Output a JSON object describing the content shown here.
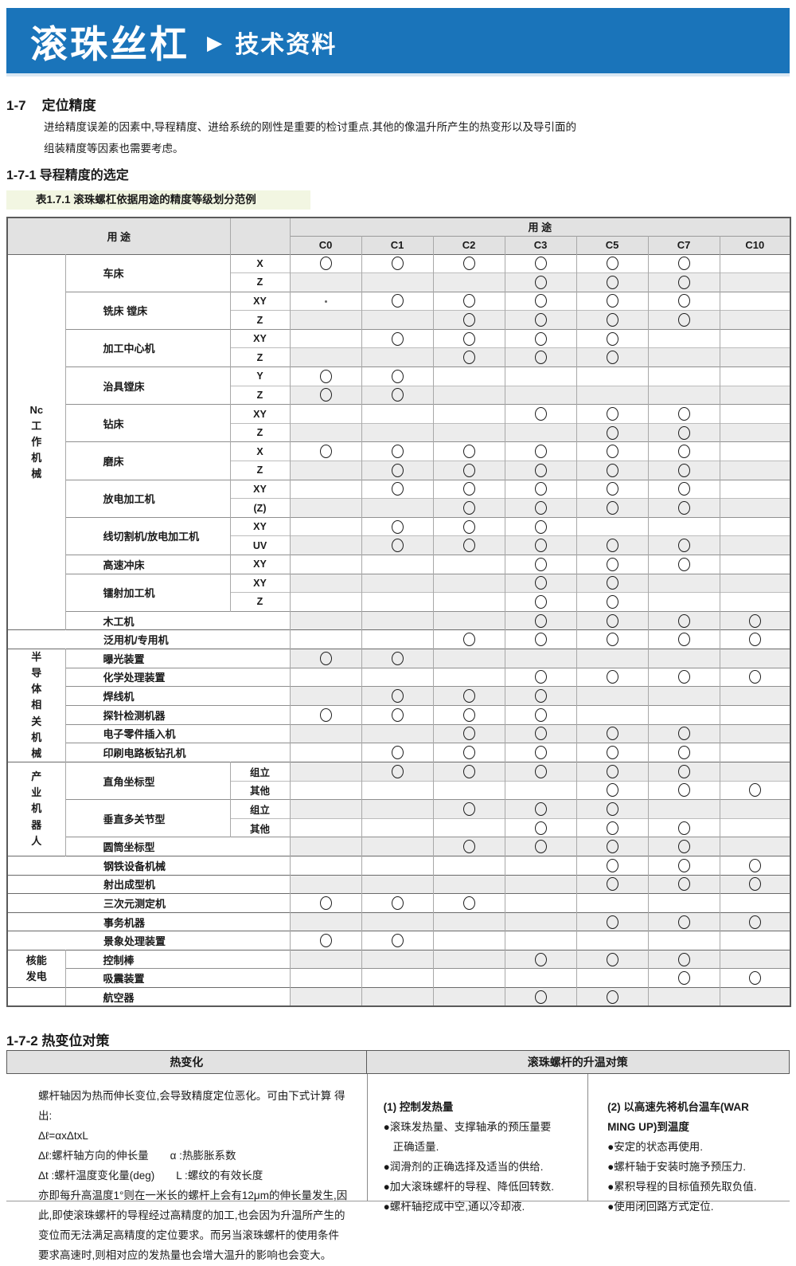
{
  "colors": {
    "banner_blue": "#1a74ba",
    "caption_highlight": "#f2f6e2",
    "table_header_bg": "#e2e2e2",
    "row_shade": "#ececec",
    "circle_color": "#1f1f1f"
  },
  "banner": {
    "title": "滚珠丝杠",
    "arrow": "▶",
    "subtitle": "技术资料"
  },
  "sections": {
    "s17_num": "1-7",
    "s17_title": "定位精度",
    "s17_body": "进给精度误差的因素中,导程精度、进给系统的刚性是重要的检讨重点.其他的像温升所产生的热变形以及导引面的\n组装精度等因素也需要考虑。",
    "s171_title": "1-7-1 导程精度的选定",
    "s171_caption": "表1.7.1  滚珠螺杠依据用途的精度等级划分范例",
    "s172_title": "1-7-2 热变位对策"
  },
  "grade_table": {
    "usage_header_left": "用  途",
    "usage_header_right": "用  途",
    "grades": [
      "C0",
      "C1",
      "C2",
      "C3",
      "C5",
      "C7",
      "C10"
    ],
    "sections": [
      {
        "type": "group",
        "label_lines": [
          "Nc",
          "工",
          "作",
          "机",
          "械"
        ],
        "machines": [
          {
            "name": "车床",
            "rows": [
              {
                "axis": "X",
                "marks": [
                  "C0",
                  "C1",
                  "C2",
                  "C3",
                  "C5",
                  "C7"
                ]
              },
              {
                "axis": "Z",
                "marks": [
                  "C3",
                  "C5",
                  "C7"
                ]
              }
            ]
          },
          {
            "name": "铣床 镗床",
            "rows": [
              {
                "axis": "XY",
                "marks": [
                  "C1",
                  "C2",
                  "C3",
                  "C5",
                  "C7"
                ],
                "dot": "C0"
              },
              {
                "axis": "Z",
                "marks": [
                  "C2",
                  "C3",
                  "C5",
                  "C7"
                ]
              }
            ]
          },
          {
            "name": "加工中心机",
            "rows": [
              {
                "axis": "XY",
                "marks": [
                  "C1",
                  "C2",
                  "C3",
                  "C5"
                ]
              },
              {
                "axis": "Z",
                "marks": [
                  "C2",
                  "C3",
                  "C5"
                ]
              }
            ]
          },
          {
            "name": "治具镗床",
            "rows": [
              {
                "axis": "Y",
                "marks": [
                  "C0",
                  "C1"
                ]
              },
              {
                "axis": "Z",
                "marks": [
                  "C0",
                  "C1"
                ]
              }
            ]
          },
          {
            "name": "钻床",
            "rows": [
              {
                "axis": "XY",
                "marks": [
                  "C3",
                  "C5",
                  "C7"
                ]
              },
              {
                "axis": "Z",
                "marks": [
                  "C5",
                  "C7"
                ]
              }
            ]
          },
          {
            "name": "磨床",
            "rows": [
              {
                "axis": "X",
                "marks": [
                  "C0",
                  "C1",
                  "C2",
                  "C3",
                  "C5",
                  "C7"
                ]
              },
              {
                "axis": "Z",
                "marks": [
                  "C1",
                  "C2",
                  "C3",
                  "C5",
                  "C7"
                ]
              }
            ]
          },
          {
            "name": "放电加工机",
            "rows": [
              {
                "axis": "XY",
                "marks": [
                  "C1",
                  "C2",
                  "C3",
                  "C5",
                  "C7"
                ]
              },
              {
                "axis": "(Z)",
                "marks": [
                  "C2",
                  "C3",
                  "C5",
                  "C7"
                ]
              }
            ]
          },
          {
            "name": "线切割机/放电加工机",
            "rows": [
              {
                "axis": "XY",
                "marks": [
                  "C1",
                  "C2",
                  "C3"
                ]
              },
              {
                "axis": "UV",
                "marks": [
                  "C1",
                  "C2",
                  "C3",
                  "C5",
                  "C7"
                ]
              }
            ]
          },
          {
            "name": "高速冲床",
            "rows": [
              {
                "axis": "XY",
                "marks": [
                  "C3",
                  "C5",
                  "C7"
                ]
              }
            ]
          },
          {
            "name": "镭射加工机",
            "rows": [
              {
                "axis": "XY",
                "marks": [
                  "C3",
                  "C5"
                ]
              },
              {
                "axis": "Z",
                "marks": [
                  "C3",
                  "C5"
                ]
              }
            ]
          },
          {
            "name": "木工机",
            "rows": [
              {
                "axis": null,
                "marks": [
                  "C3",
                  "C5",
                  "C7",
                  "C10"
                ]
              }
            ]
          }
        ]
      },
      {
        "type": "full",
        "name": "泛用机/专用机",
        "marks": [
          "C2",
          "C3",
          "C5",
          "C7",
          "C10"
        ]
      },
      {
        "type": "group",
        "label_lines": [
          "半",
          "导",
          "体",
          "相",
          "关",
          "机",
          "械"
        ],
        "machines": [
          {
            "name": "曝光装置",
            "rows": [
              {
                "axis": null,
                "marks": [
                  "C0",
                  "C1"
                ]
              }
            ]
          },
          {
            "name": "化学处理装置",
            "rows": [
              {
                "axis": null,
                "marks": [
                  "C3",
                  "C5",
                  "C7",
                  "C10"
                ]
              }
            ]
          },
          {
            "name": "焊线机",
            "rows": [
              {
                "axis": null,
                "marks": [
                  "C1",
                  "C2",
                  "C3"
                ]
              }
            ]
          },
          {
            "name": "探针检测机器",
            "rows": [
              {
                "axis": null,
                "marks": [
                  "C0",
                  "C1",
                  "C2",
                  "C3"
                ]
              }
            ]
          },
          {
            "name": "电子零件插入机",
            "rows": [
              {
                "axis": null,
                "marks": [
                  "C2",
                  "C3",
                  "C5",
                  "C7"
                ]
              }
            ]
          },
          {
            "name": "印刷电路板钻孔机",
            "rows": [
              {
                "axis": null,
                "marks": [
                  "C1",
                  "C2",
                  "C3",
                  "C5",
                  "C7"
                ]
              }
            ]
          }
        ]
      },
      {
        "type": "group",
        "label_lines": [
          "产",
          "业",
          "机",
          "器",
          "人"
        ],
        "machines": [
          {
            "name": "直角坐标型",
            "rows": [
              {
                "axis": "组立",
                "marks": [
                  "C1",
                  "C2",
                  "C3",
                  "C5",
                  "C7"
                ]
              },
              {
                "axis": "其他",
                "marks": [
                  "C5",
                  "C7",
                  "C10"
                ]
              }
            ]
          },
          {
            "name": "垂直多关节型",
            "rows": [
              {
                "axis": "组立",
                "marks": [
                  "C2",
                  "C3",
                  "C5"
                ]
              },
              {
                "axis": "其他",
                "marks": [
                  "C3",
                  "C5",
                  "C7"
                ]
              }
            ]
          },
          {
            "name": "圆筒坐标型",
            "rows": [
              {
                "axis": null,
                "marks": [
                  "C2",
                  "C3",
                  "C5",
                  "C7"
                ]
              }
            ]
          }
        ]
      },
      {
        "type": "full",
        "name": "钢铁设备机械",
        "marks": [
          "C5",
          "C7",
          "C10"
        ]
      },
      {
        "type": "full",
        "name": "射出成型机",
        "marks": [
          "C5",
          "C7",
          "C10"
        ]
      },
      {
        "type": "full",
        "name": "三次元测定机",
        "marks": [
          "C0",
          "C1",
          "C2"
        ]
      },
      {
        "type": "full",
        "name": "事务机器",
        "marks": [
          "C5",
          "C7",
          "C10"
        ]
      },
      {
        "type": "full",
        "name": "景象处理装置",
        "marks": [
          "C0",
          "C1"
        ]
      },
      {
        "type": "group",
        "label_lines": [
          "核能",
          "发电"
        ],
        "machines": [
          {
            "name": "控制棒",
            "rows": [
              {
                "axis": null,
                "marks": [
                  "C3",
                  "C5",
                  "C7"
                ]
              }
            ]
          },
          {
            "name": "吸震装置",
            "rows": [
              {
                "axis": null,
                "marks": [
                  "C7",
                  "C10"
                ]
              }
            ]
          }
        ]
      },
      {
        "type": "group",
        "label_lines": [],
        "machines": [
          {
            "name": "航空器",
            "rows": [
              {
                "axis": null,
                "marks": [
                  "C3",
                  "C5"
                ]
              }
            ]
          }
        ]
      }
    ]
  },
  "thermal_table": {
    "header_left": "热变化",
    "header_right": "滚珠螺杆的升温对策",
    "left_paragraphs": [
      "螺杆轴因为热而伸长变位,会导致精度定位恶化。可由下式计算 得出:",
      "Δℓ=αxΔtxL",
      "Δℓ:螺杆轴方向的伸长量　　α :热膨胀系数",
      "Δt :螺杆温度变化量(deg)　　L :螺纹的有效长度",
      "亦即每升高温度1°则在一米长的螺杆上会有12μm的伸长量发生,因此,即使滚珠螺杆的导程经过高精度的加工,也会因为升温所产生的变位而无法满足高精度的定位要求。而另当滚珠螺杆的使用条件要求高速时,则相对应的发热量也会增大温升的影响也会变大。"
    ],
    "mid_heading": "(1) 控制发热量",
    "mid_items": [
      "●滚珠发热量、支撑轴承的预压量要\n正确适量.",
      "●润滑剂的正确选择及适当的供给.",
      "●加大滚珠螺杆的导程、降低回转数.",
      "●螺杆轴挖成中空,通以冷却液."
    ],
    "right_heading": "(2) 以高速先将机台温车(WAR\nMING UP)到温度",
    "right_items": [
      "●安定的状态再使用.",
      "●螺杆轴于安装时施予预压力.",
      "●累积导程的目标值预先取负值.",
      "●使用闭回路方式定位."
    ]
  }
}
